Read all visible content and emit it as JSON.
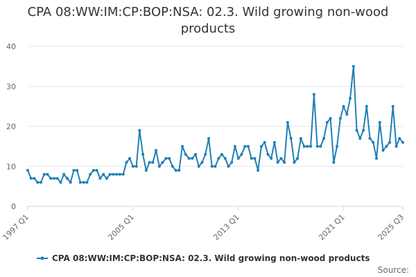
{
  "source_label": "Source:",
  "chart_data": {
    "type": "line",
    "title": "CPA 08:WW:IM:CP:BOP:NSA: 02.3. Wild growing non-wood products",
    "xlabel": "",
    "ylabel": "",
    "ylim": [
      0,
      40
    ],
    "y_ticks": [
      0,
      10,
      20,
      30,
      40
    ],
    "x_tick_labels": [
      "1997 Q1",
      "2005 Q1",
      "2013 Q1",
      "2021 Q1",
      "2025 Q3"
    ],
    "grid": true,
    "legend_position": "bottom",
    "color": "#1f7fb6",
    "series": [
      {
        "name": "CPA 08:WW:IM:CP:BOP:NSA: 02.3. Wild growing non-wood products",
        "x": [
          "1997 Q1",
          "1997 Q2",
          "1997 Q3",
          "1997 Q4",
          "1998 Q1",
          "1998 Q2",
          "1998 Q3",
          "1998 Q4",
          "1999 Q1",
          "1999 Q2",
          "1999 Q3",
          "1999 Q4",
          "2000 Q1",
          "2000 Q2",
          "2000 Q3",
          "2000 Q4",
          "2001 Q1",
          "2001 Q2",
          "2001 Q3",
          "2001 Q4",
          "2002 Q1",
          "2002 Q2",
          "2002 Q3",
          "2002 Q4",
          "2003 Q1",
          "2003 Q2",
          "2003 Q3",
          "2003 Q4",
          "2004 Q1",
          "2004 Q2",
          "2004 Q3",
          "2004 Q4",
          "2005 Q1",
          "2005 Q2",
          "2005 Q3",
          "2005 Q4",
          "2006 Q1",
          "2006 Q2",
          "2006 Q3",
          "2006 Q4",
          "2007 Q1",
          "2007 Q2",
          "2007 Q3",
          "2007 Q4",
          "2008 Q1",
          "2008 Q2",
          "2008 Q3",
          "2008 Q4",
          "2009 Q1",
          "2009 Q2",
          "2009 Q3",
          "2009 Q4",
          "2010 Q1",
          "2010 Q2",
          "2010 Q3",
          "2010 Q4",
          "2011 Q1",
          "2011 Q2",
          "2011 Q3",
          "2011 Q4",
          "2012 Q1",
          "2012 Q2",
          "2012 Q3",
          "2012 Q4",
          "2013 Q1",
          "2013 Q2",
          "2013 Q3",
          "2013 Q4",
          "2014 Q1",
          "2014 Q2",
          "2014 Q3",
          "2014 Q4",
          "2015 Q1",
          "2015 Q2",
          "2015 Q3",
          "2015 Q4",
          "2016 Q1",
          "2016 Q2",
          "2016 Q3",
          "2016 Q4",
          "2017 Q1",
          "2017 Q2",
          "2017 Q3",
          "2017 Q4",
          "2018 Q1",
          "2018 Q2",
          "2018 Q3",
          "2018 Q4",
          "2019 Q1",
          "2019 Q2",
          "2019 Q3",
          "2019 Q4",
          "2020 Q1",
          "2020 Q2",
          "2020 Q3",
          "2020 Q4",
          "2021 Q1",
          "2021 Q2",
          "2021 Q3",
          "2021 Q4",
          "2022 Q1",
          "2022 Q2",
          "2022 Q3",
          "2022 Q4",
          "2023 Q1",
          "2023 Q2",
          "2023 Q3",
          "2023 Q4",
          "2024 Q1",
          "2024 Q2",
          "2024 Q3",
          "2024 Q4",
          "2025 Q1",
          "2025 Q2",
          "2025 Q3"
        ],
        "values": [
          9,
          7,
          7,
          6,
          6,
          8,
          8,
          7,
          7,
          7,
          6,
          8,
          7,
          6,
          9,
          9,
          6,
          6,
          6,
          8,
          9,
          9,
          7,
          8,
          7,
          8,
          8,
          8,
          8,
          8,
          11,
          12,
          10,
          10,
          19,
          13,
          9,
          11,
          11,
          14,
          10,
          11,
          12,
          12,
          10,
          9,
          9,
          15,
          13,
          12,
          12,
          13,
          10,
          11,
          13,
          17,
          10,
          10,
          12,
          13,
          12,
          10,
          11,
          15,
          12,
          13,
          15,
          15,
          12,
          12,
          9,
          15,
          16,
          13,
          12,
          16,
          11,
          12,
          11,
          21,
          17,
          11,
          12,
          17,
          15,
          15,
          15,
          28,
          15,
          15,
          17,
          21,
          22,
          11,
          15,
          22,
          25,
          23,
          27,
          35,
          19,
          17,
          19,
          25,
          17,
          16,
          12,
          21,
          14,
          15,
          16,
          25,
          15,
          17,
          16
        ]
      }
    ]
  }
}
